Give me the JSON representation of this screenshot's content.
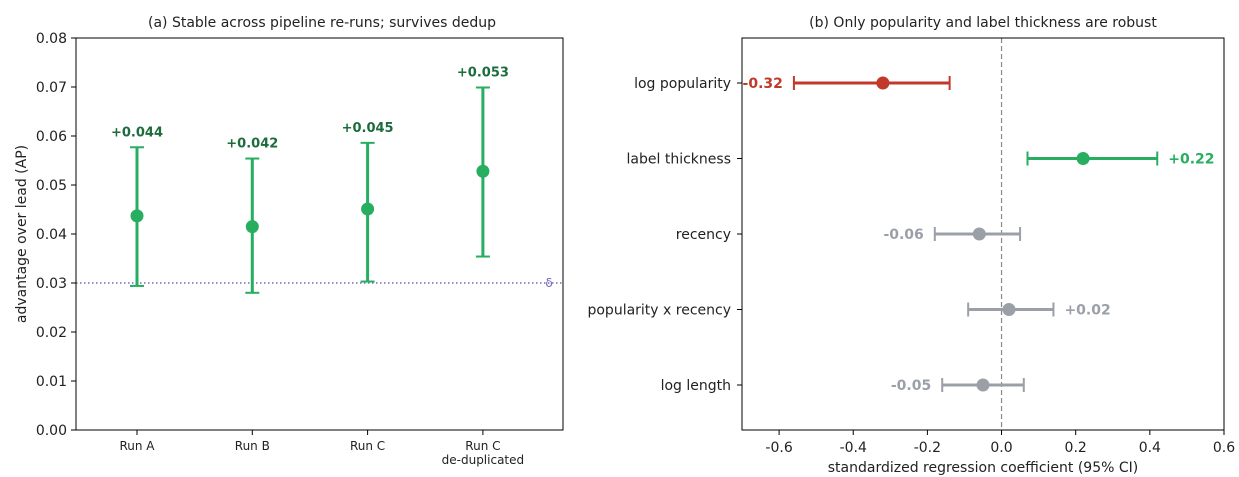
{
  "chart_data": [
    {
      "type": "errorbar",
      "title": "(a) Stable across pipeline re-runs; survives dedup",
      "xlabel": "",
      "ylabel": "advantage over lead (AP)",
      "ylim": [
        0.0,
        0.08
      ],
      "yticks": [
        "0.00",
        "0.01",
        "0.02",
        "0.03",
        "0.04",
        "0.05",
        "0.06",
        "0.07",
        "0.08"
      ],
      "grid": false,
      "categories": [
        {
          "lines": [
            "Run A"
          ]
        },
        {
          "lines": [
            "Run B"
          ]
        },
        {
          "lines": [
            "Run C"
          ]
        },
        {
          "lines": [
            "Run C",
            "de-duplicated"
          ]
        }
      ],
      "points": [
        {
          "value": 0.0437,
          "ci_low": 0.0294,
          "ci_high": 0.0577,
          "label": "+0.044"
        },
        {
          "value": 0.0415,
          "ci_low": 0.028,
          "ci_high": 0.0554,
          "label": "+0.042"
        },
        {
          "value": 0.0451,
          "ci_low": 0.0303,
          "ci_high": 0.0586,
          "label": "+0.045"
        },
        {
          "value": 0.0528,
          "ci_low": 0.0354,
          "ci_high": 0.0699,
          "label": "+0.053"
        }
      ],
      "reference_line": {
        "y": 0.03,
        "label": "δ",
        "color": "#7b68b8"
      },
      "color": "#27ae60",
      "label_color": "#1e6b3d"
    },
    {
      "type": "forest",
      "title": "(b) Only popularity and label thickness are robust",
      "xlabel": "standardized regression coefficient (95% CI)",
      "ylabel": "",
      "xlim": [
        -0.7,
        0.6
      ],
      "xticks": [
        "-0.6",
        "-0.4",
        "-0.2",
        "0.0",
        "0.2",
        "0.4",
        "0.6"
      ],
      "grid": false,
      "reference_line": {
        "x": 0.0,
        "style": "dashed",
        "color": "#888888"
      },
      "rows": [
        {
          "name": "log popularity",
          "coef": -0.32,
          "ci_low": -0.56,
          "ci_high": -0.14,
          "label": "-0.32",
          "color": "#c0392b"
        },
        {
          "name": "label thickness",
          "coef": 0.22,
          "ci_low": 0.07,
          "ci_high": 0.42,
          "label": "+0.22",
          "color": "#27ae60"
        },
        {
          "name": "recency",
          "coef": -0.06,
          "ci_low": -0.18,
          "ci_high": 0.05,
          "label": "-0.06",
          "color": "#9ba0a8"
        },
        {
          "name": "popularity x recency",
          "coef": 0.02,
          "ci_low": -0.09,
          "ci_high": 0.14,
          "label": "+0.02",
          "color": "#9ba0a8"
        },
        {
          "name": "log length",
          "coef": -0.05,
          "ci_low": -0.16,
          "ci_high": 0.06,
          "label": "-0.05",
          "color": "#9ba0a8"
        }
      ]
    }
  ]
}
